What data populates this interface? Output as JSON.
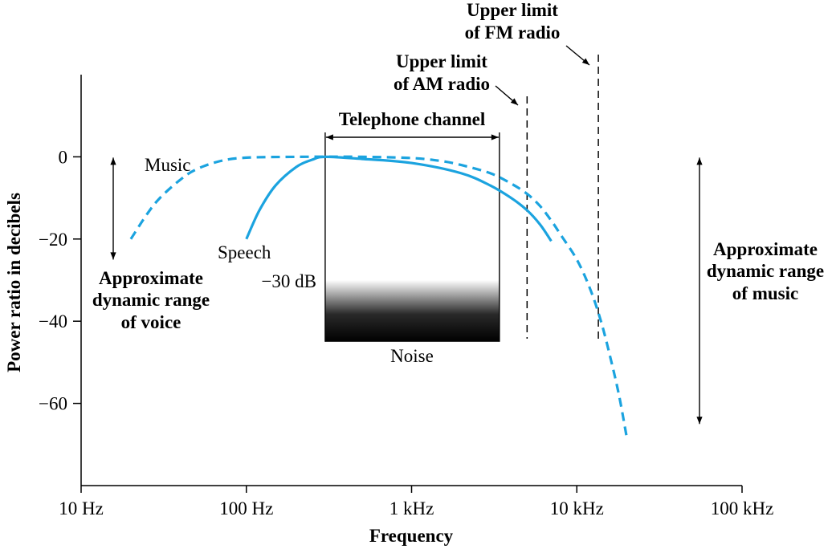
{
  "chart_data": {
    "type": "line",
    "xlabel": "Frequency",
    "ylabel": "Power ratio in decibels",
    "x_scale": "log",
    "xlim": [
      10,
      100000
    ],
    "ylim": [
      -80,
      20
    ],
    "grid": false,
    "x_ticks": [
      {
        "value": 10,
        "label": "10 Hz"
      },
      {
        "value": 100,
        "label": "100 Hz"
      },
      {
        "value": 1000,
        "label": "1 kHz"
      },
      {
        "value": 10000,
        "label": "10 kHz"
      },
      {
        "value": 100000,
        "label": "100 kHz"
      }
    ],
    "y_ticks": [
      {
        "value": 0,
        "label": "0"
      },
      {
        "value": -20,
        "label": "−20"
      },
      {
        "value": -40,
        "label": "−40"
      },
      {
        "value": -60,
        "label": "−60"
      }
    ],
    "series": [
      {
        "name": "Music",
        "dashed": true,
        "color": "#1ba3df",
        "x": [
          20,
          25,
          30,
          40,
          50,
          70,
          100,
          200,
          500,
          1000,
          1500,
          2000,
          3000,
          4000,
          5000,
          6000,
          7000,
          8000,
          10000,
          12000,
          14000,
          16000,
          18000,
          20000
        ],
        "y": [
          -20,
          -14,
          -10,
          -5.5,
          -3,
          -1,
          -0.2,
          0,
          0,
          -0.3,
          -1,
          -2,
          -4,
          -6.5,
          -9,
          -12,
          -15.5,
          -19,
          -25,
          -32,
          -40,
          -49,
          -58,
          -68
        ]
      },
      {
        "name": "Speech",
        "dashed": false,
        "color": "#1ba3df",
        "x": [
          100,
          120,
          150,
          200,
          250,
          300,
          500,
          1000,
          2000,
          3000,
          4000,
          5000,
          6000,
          7000
        ],
        "y": [
          -20,
          -13,
          -7,
          -2.5,
          -0.7,
          0,
          -0.5,
          -1.5,
          -4,
          -7,
          -10,
          -13,
          -16.5,
          -20.5
        ]
      }
    ],
    "annotations": {
      "telephone_channel": {
        "label": "Telephone channel",
        "x_range": [
          300,
          3400
        ]
      },
      "noise": {
        "label": "Noise",
        "level_label": "−30 dB",
        "y_range": [
          -30,
          -45
        ]
      },
      "am_limit": {
        "label_lines": [
          "Upper limit",
          "of AM radio"
        ],
        "x": 5000
      },
      "fm_limit": {
        "label_lines": [
          "Upper limit",
          "of FM radio"
        ],
        "x": 13500
      },
      "voice_range": {
        "label_lines": [
          "Approximate",
          "dynamic range",
          "of voice"
        ],
        "y_range": [
          0,
          -25
        ]
      },
      "music_range": {
        "label_lines": [
          "Approximate",
          "dynamic range",
          "of music"
        ],
        "y_range": [
          0,
          -65
        ]
      }
    }
  }
}
